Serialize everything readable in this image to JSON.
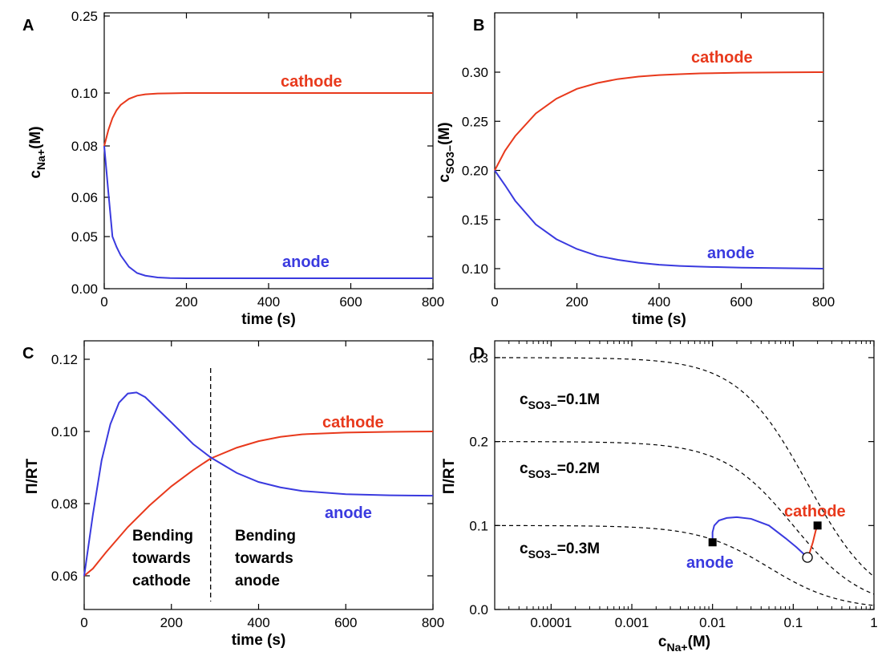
{
  "chart_data": [
    {
      "panel": "A",
      "type": "line",
      "xlabel": "time (s)",
      "ylabel_main": "c",
      "ylabel_sub": "Na+",
      "ylabel_unit": "(M)",
      "xlim": [
        0,
        800
      ],
      "ylim": [
        0,
        0.25
      ],
      "xticks": [
        "0",
        "200",
        "400",
        "600",
        "800"
      ],
      "xtick_values": [
        0,
        200,
        400,
        600,
        800
      ],
      "yticks": [
        "0.00",
        "0.05",
        "0.06",
        "0.08",
        "0.10",
        "0.25"
      ],
      "ytick_values": [
        0.0,
        0.05,
        0.06,
        0.08,
        0.1,
        0.25
      ],
      "series": [
        {
          "name": "cathode",
          "color": "#e8391c",
          "x": [
            0,
            10,
            20,
            30,
            40,
            60,
            80,
            100,
            130,
            160,
            200,
            250,
            300,
            400,
            500,
            600,
            700,
            800
          ],
          "y": [
            0.08,
            0.086,
            0.0905,
            0.0935,
            0.0955,
            0.0978,
            0.099,
            0.0995,
            0.0998,
            0.0999,
            0.1,
            0.1,
            0.1,
            0.1,
            0.1,
            0.1,
            0.1,
            0.1
          ]
        },
        {
          "name": "anode",
          "color": "#3a3adf",
          "x": [
            0,
            10,
            20,
            30,
            40,
            60,
            80,
            100,
            130,
            160,
            200,
            250,
            300,
            400,
            500,
            600,
            700,
            800
          ],
          "y": [
            0.08,
            0.062,
            0.05,
            0.04,
            0.032,
            0.021,
            0.015,
            0.0125,
            0.0108,
            0.0102,
            0.01,
            0.01,
            0.01,
            0.01,
            0.01,
            0.01,
            0.01,
            0.01
          ]
        }
      ]
    },
    {
      "panel": "B",
      "type": "line",
      "xlabel": "time (s)",
      "ylabel_main": "c",
      "ylabel_sub": "SO3−",
      "ylabel_unit": "(M)",
      "xlim": [
        0,
        800
      ],
      "ylim": [
        0.08,
        0.32
      ],
      "xticks": [
        "0",
        "200",
        "400",
        "600",
        "800"
      ],
      "xtick_values": [
        0,
        200,
        400,
        600,
        800
      ],
      "yticks": [
        "0.10",
        "0.15",
        "0.20",
        "0.25",
        "0.30"
      ],
      "ytick_values": [
        0.1,
        0.15,
        0.2,
        0.25,
        0.3
      ],
      "series": [
        {
          "name": "cathode",
          "color": "#e8391c",
          "x": [
            0,
            25,
            50,
            100,
            150,
            200,
            250,
            300,
            350,
            400,
            450,
            500,
            600,
            700,
            800
          ],
          "y": [
            0.2,
            0.22,
            0.235,
            0.258,
            0.273,
            0.283,
            0.289,
            0.293,
            0.2955,
            0.297,
            0.298,
            0.2988,
            0.2995,
            0.2998,
            0.3
          ]
        },
        {
          "name": "anode",
          "color": "#3a3adf",
          "x": [
            0,
            25,
            50,
            100,
            150,
            200,
            250,
            300,
            350,
            400,
            450,
            500,
            600,
            700,
            800
          ],
          "y": [
            0.2,
            0.185,
            0.169,
            0.145,
            0.13,
            0.12,
            0.113,
            0.109,
            0.106,
            0.104,
            0.1028,
            0.102,
            0.101,
            0.1005,
            0.1
          ]
        }
      ]
    },
    {
      "panel": "C",
      "type": "line",
      "xlabel": "time (s)",
      "ylabel": "Π/RT",
      "xlim": [
        0,
        800
      ],
      "ylim": [
        0.05,
        0.12
      ],
      "xticks": [
        "0",
        "200",
        "400",
        "600",
        "800"
      ],
      "xtick_values": [
        0,
        200,
        400,
        600,
        800
      ],
      "yticks": [
        "0.06",
        "0.08",
        "0.10",
        "0.12"
      ],
      "ytick_values": [
        0.06,
        0.08,
        0.1,
        0.12
      ],
      "vline_x": 290,
      "annotations": [
        "Bending",
        "towards",
        "cathode",
        "Bending",
        "towards",
        "anode"
      ],
      "series": [
        {
          "name": "cathode",
          "color": "#e8391c",
          "x": [
            0,
            20,
            50,
            100,
            150,
            200,
            250,
            290,
            350,
            400,
            450,
            500,
            600,
            700,
            800
          ],
          "y": [
            0.06,
            0.062,
            0.0665,
            0.0735,
            0.0795,
            0.0848,
            0.0893,
            0.0925,
            0.0955,
            0.0973,
            0.0985,
            0.0992,
            0.0997,
            0.0999,
            0.1
          ]
        },
        {
          "name": "anode",
          "color": "#3a3adf",
          "x": [
            0,
            20,
            40,
            60,
            80,
            100,
            120,
            140,
            170,
            200,
            250,
            290,
            350,
            400,
            450,
            500,
            600,
            700,
            800
          ],
          "y": [
            0.06,
            0.077,
            0.092,
            0.102,
            0.108,
            0.1105,
            0.1108,
            0.1095,
            0.106,
            0.1025,
            0.0965,
            0.0928,
            0.0885,
            0.086,
            0.0845,
            0.0835,
            0.0826,
            0.0823,
            0.0822
          ]
        }
      ]
    },
    {
      "panel": "D",
      "type": "line",
      "xlabel_main": "c",
      "xlabel_sub": "Na+",
      "xlabel_unit": "(M)",
      "ylabel": "Π/RT",
      "xscale": "log",
      "xlim": [
        2e-05,
        1
      ],
      "ylim": [
        0,
        0.32
      ],
      "xticks": [
        "0.0001",
        "0.001",
        "0.01",
        "0.1",
        "1"
      ],
      "xtick_values": [
        0.0001,
        0.001,
        0.01,
        0.1,
        1
      ],
      "yticks": [
        "0.0",
        "0.1",
        "0.2",
        "0.3"
      ],
      "ytick_values": [
        0.0,
        0.1,
        0.2,
        0.3
      ],
      "isolines": [
        {
          "label_main": "c",
          "label_sub": "SO3−",
          "label_value": "=0.1M",
          "cs": 0.1
        },
        {
          "label_main": "c",
          "label_sub": "SO3−",
          "label_value": "=0.2M",
          "cs": 0.2
        },
        {
          "label_main": "c",
          "label_sub": "SO3−",
          "label_value": "=0.3M",
          "cs": 0.3
        }
      ],
      "series": [
        {
          "name": "cathode",
          "color": "#e8391c",
          "x": [
            0.15,
            0.16,
            0.175,
            0.19,
            0.2
          ],
          "y": [
            0.062,
            0.068,
            0.08,
            0.094,
            0.1
          ]
        },
        {
          "name": "anode",
          "color": "#3a3adf",
          "x": [
            0.15,
            0.11,
            0.08,
            0.05,
            0.03,
            0.02,
            0.015,
            0.012,
            0.0105,
            0.01,
            0.01
          ],
          "y": [
            0.062,
            0.074,
            0.085,
            0.1,
            0.108,
            0.11,
            0.109,
            0.106,
            0.1,
            0.092,
            0.08
          ]
        }
      ],
      "markers": [
        {
          "x": 0.01,
          "y": 0.08,
          "shape": "square"
        },
        {
          "x": 0.2,
          "y": 0.1,
          "shape": "square"
        },
        {
          "x": 0.15,
          "y": 0.062,
          "shape": "open-circle"
        }
      ]
    }
  ]
}
